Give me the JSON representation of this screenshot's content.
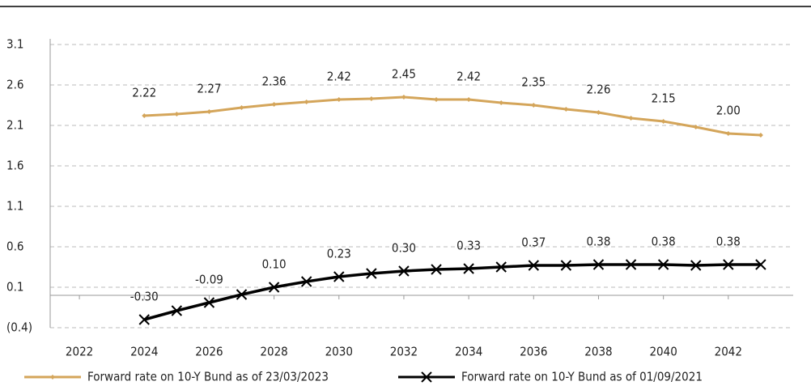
{
  "chart_data": {
    "type": "line",
    "x": [
      2024,
      2025,
      2026,
      2027,
      2028,
      2029,
      2030,
      2031,
      2032,
      2033,
      2034,
      2035,
      2036,
      2037,
      2038,
      2039,
      2040,
      2041,
      2042,
      2043
    ],
    "series": [
      {
        "name": "Forward rate on 10-Y Bund as of 23/03/2023",
        "color": "#d4a55a",
        "marker": "diamond",
        "values": [
          2.22,
          2.24,
          2.27,
          2.32,
          2.36,
          2.39,
          2.42,
          2.43,
          2.45,
          2.42,
          2.42,
          2.38,
          2.35,
          2.3,
          2.26,
          2.19,
          2.15,
          2.08,
          2.0,
          1.98
        ],
        "value_labels": [
          "2.22",
          null,
          "2.27",
          null,
          "2.36",
          null,
          "2.42",
          null,
          "2.45",
          null,
          "2.42",
          null,
          "2.35",
          null,
          "2.26",
          null,
          "2.15",
          null,
          "2.00",
          null
        ]
      },
      {
        "name": "Forward rate on 10-Y Bund as of 01/09/2021",
        "color": "#000000",
        "marker": "x",
        "values": [
          -0.3,
          -0.19,
          -0.09,
          0.01,
          0.1,
          0.17,
          0.23,
          0.27,
          0.3,
          0.32,
          0.33,
          0.35,
          0.37,
          0.37,
          0.38,
          0.38,
          0.38,
          0.37,
          0.38,
          0.38
        ],
        "value_labels": [
          "-0.30",
          null,
          "-0.09",
          null,
          "0.10",
          null,
          "0.23",
          null,
          "0.30",
          null,
          "0.33",
          null,
          "0.37",
          null,
          "0.38",
          null,
          "0.38",
          null,
          "0.38",
          null
        ]
      }
    ],
    "xlim": [
      2021.1,
      2044
    ],
    "xticks": [
      2022,
      2024,
      2026,
      2028,
      2030,
      2032,
      2034,
      2036,
      2038,
      2040,
      2042
    ],
    "ylim": [
      -0.4,
      3.6
    ],
    "yticks": [
      {
        "value": -0.4,
        "label": "(0.4)"
      },
      0.1,
      0.6,
      1.1,
      1.6,
      2.1,
      2.6,
      3.1
    ],
    "grid": true,
    "legend": "bottom"
  }
}
